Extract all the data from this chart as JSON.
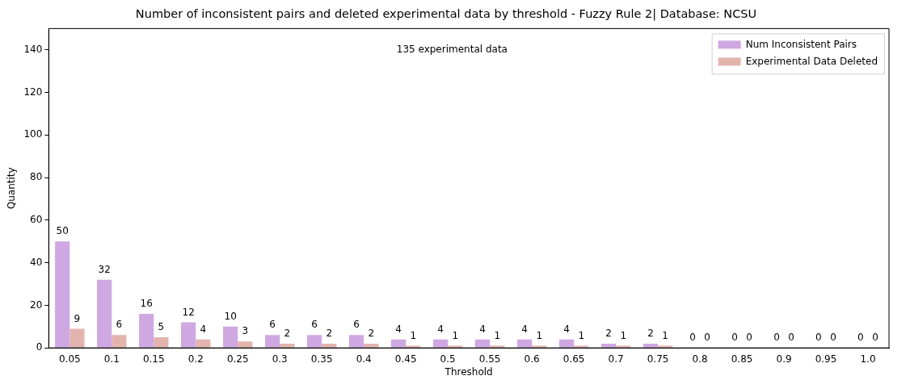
{
  "chart_data": {
    "type": "bar",
    "title": "Number of inconsistent pairs and deleted experimental data by threshold - Fuzzy Rule 2| Database: NCSU",
    "xlabel": "Threshold",
    "ylabel": "Quantity",
    "categories": [
      "0.05",
      "0.1",
      "0.15",
      "0.2",
      "0.25",
      "0.3",
      "0.35",
      "0.4",
      "0.45",
      "0.5",
      "0.55",
      "0.6",
      "0.65",
      "0.7",
      "0.75",
      "0.8",
      "0.85",
      "0.9",
      "0.95",
      "1.0"
    ],
    "series": [
      {
        "name": "Num Inconsistent Pairs",
        "color": "#cfa8e2",
        "values": [
          50,
          32,
          16,
          12,
          10,
          6,
          6,
          6,
          4,
          4,
          4,
          4,
          4,
          2,
          2,
          0,
          0,
          0,
          0,
          0
        ]
      },
      {
        "name": "Experimental Data Deleted",
        "color": "#e3b4ae",
        "values": [
          9,
          6,
          5,
          4,
          3,
          2,
          2,
          2,
          1,
          1,
          1,
          1,
          1,
          1,
          1,
          0,
          0,
          0,
          0,
          0
        ]
      }
    ],
    "ylim": [
      0,
      150
    ],
    "yticks": [
      0,
      20,
      40,
      60,
      80,
      100,
      120,
      140
    ],
    "legend": "top right",
    "data_labels": true,
    "grid": false,
    "annotations": [
      "135 experimental data"
    ]
  }
}
